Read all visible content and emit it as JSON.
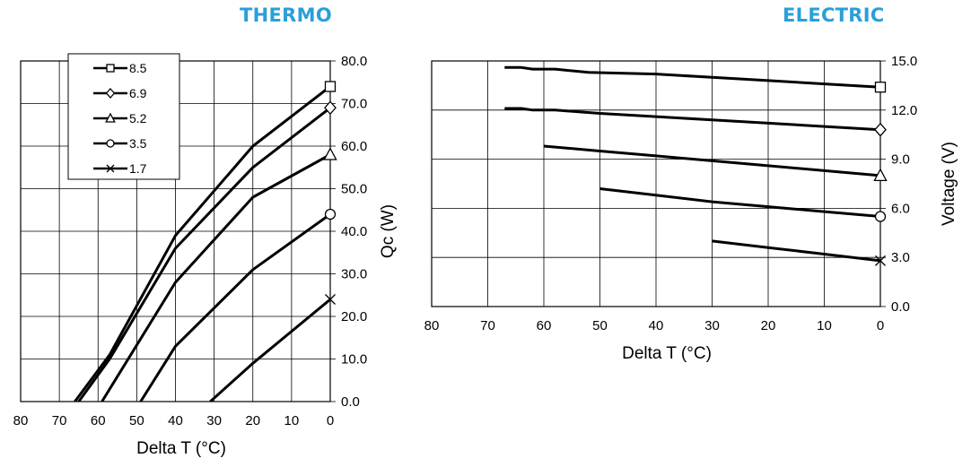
{
  "headings": {
    "thermo": "THERMO",
    "electric": "ELECTRIC"
  },
  "colors": {
    "heading": "#2a9fd8",
    "series": "#000000",
    "grid": "#000000"
  },
  "chart_data": [
    {
      "type": "line",
      "title": "THERMO",
      "xlabel": "Delta T (°C)",
      "ylabel": "Qc (W)",
      "xlim": [
        80,
        0
      ],
      "ylim": [
        0,
        80
      ],
      "x_ticks": [
        "80",
        "70",
        "60",
        "50",
        "40",
        "30",
        "20",
        "10",
        "0"
      ],
      "y_ticks": [
        "0.0",
        "10.0",
        "20.0",
        "30.0",
        "40.0",
        "50.0",
        "60.0",
        "70.0",
        "80.0"
      ],
      "grid": true,
      "legend": {
        "placement": "top-left"
      },
      "series": [
        {
          "name": "8.5",
          "marker": "square",
          "points": [
            [
              66,
              0
            ],
            [
              57,
              11
            ],
            [
              40,
              39
            ],
            [
              20,
              60
            ],
            [
              0,
              74
            ]
          ]
        },
        {
          "name": "6.9",
          "marker": "diamond",
          "points": [
            [
              65,
              0
            ],
            [
              57,
              10
            ],
            [
              40,
              36
            ],
            [
              20,
              55
            ],
            [
              0,
              69
            ]
          ]
        },
        {
          "name": "5.2",
          "marker": "triangle",
          "points": [
            [
              59,
              0
            ],
            [
              40,
              28
            ],
            [
              20,
              48
            ],
            [
              0,
              58
            ]
          ]
        },
        {
          "name": "3.5",
          "marker": "circle",
          "points": [
            [
              49,
              0
            ],
            [
              40,
              13
            ],
            [
              20,
              31
            ],
            [
              0,
              44
            ]
          ]
        },
        {
          "name": "1.7",
          "marker": "x",
          "points": [
            [
              31,
              0
            ],
            [
              20,
              9
            ],
            [
              0,
              24
            ]
          ]
        }
      ]
    },
    {
      "type": "line",
      "title": "ELECTRIC",
      "xlabel": "Delta T (°C)",
      "ylabel": "Voltage (V)",
      "xlim": [
        80,
        0
      ],
      "ylim": [
        0,
        15
      ],
      "x_ticks": [
        "80",
        "70",
        "60",
        "50",
        "40",
        "30",
        "20",
        "10",
        "0"
      ],
      "y_ticks": [
        "0.0",
        "3.0",
        "6.0",
        "9.0",
        "12.0",
        "15.0"
      ],
      "grid": true,
      "series": [
        {
          "name": "8.5",
          "marker": "square",
          "points": [
            [
              67,
              14.6
            ],
            [
              64,
              14.6
            ],
            [
              62,
              14.5
            ],
            [
              58,
              14.5
            ],
            [
              52,
              14.3
            ],
            [
              40,
              14.2
            ],
            [
              30,
              14.0
            ],
            [
              20,
              13.8
            ],
            [
              10,
              13.6
            ],
            [
              0,
              13.4
            ]
          ]
        },
        {
          "name": "6.9",
          "marker": "diamond",
          "points": [
            [
              67,
              12.1
            ],
            [
              64,
              12.1
            ],
            [
              62,
              12.0
            ],
            [
              58,
              12.0
            ],
            [
              50,
              11.8
            ],
            [
              40,
              11.6
            ],
            [
              30,
              11.4
            ],
            [
              20,
              11.2
            ],
            [
              10,
              11.0
            ],
            [
              0,
              10.8
            ]
          ]
        },
        {
          "name": "5.2",
          "marker": "triangle",
          "points": [
            [
              60,
              9.8
            ],
            [
              50,
              9.5
            ],
            [
              40,
              9.2
            ],
            [
              30,
              8.9
            ],
            [
              20,
              8.6
            ],
            [
              10,
              8.3
            ],
            [
              0,
              8.0
            ]
          ]
        },
        {
          "name": "3.5",
          "marker": "circle",
          "points": [
            [
              50,
              7.2
            ],
            [
              40,
              6.8
            ],
            [
              30,
              6.4
            ],
            [
              20,
              6.1
            ],
            [
              10,
              5.8
            ],
            [
              0,
              5.5
            ]
          ]
        },
        {
          "name": "1.7",
          "marker": "x",
          "points": [
            [
              30,
              4.0
            ],
            [
              20,
              3.6
            ],
            [
              10,
              3.2
            ],
            [
              0,
              2.8
            ]
          ]
        }
      ]
    }
  ]
}
